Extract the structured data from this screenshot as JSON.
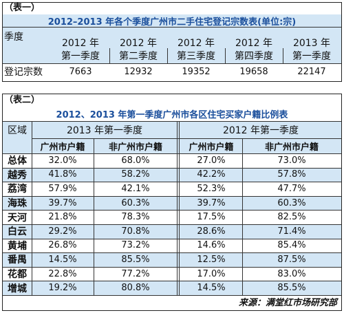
{
  "table1": {
    "label": "（表一）",
    "title": "2012–2013 年各个季度广州市二手住宅登记宗数表(单位:宗)",
    "row_header": "季度",
    "columns": [
      {
        "year": "2012 年",
        "quarter": "第一季度"
      },
      {
        "year": "2012 年",
        "quarter": "第二季度"
      },
      {
        "year": "2012 年",
        "quarter": "第三季度"
      },
      {
        "year": "2012 年",
        "quarter": "第四季度"
      },
      {
        "year": "2013 年",
        "quarter": "第一季度"
      }
    ],
    "row_label": "登记宗数",
    "values": [
      "7663",
      "12932",
      "19352",
      "19658",
      "22147"
    ]
  },
  "table2": {
    "label": "（表二）",
    "title": "2012、2013 年第一季度广州市各区住宅买家户籍比例表",
    "region_header": "区域",
    "groups": [
      "2013 年第一季度",
      "2012 年第一季度"
    ],
    "subheaders": [
      "广州市户籍",
      "非广州市户籍",
      "广州市户籍",
      "非广州市户籍"
    ],
    "rows": [
      [
        "总体",
        "32.0%",
        "68.0%",
        "27.0%",
        "73.0%"
      ],
      [
        "越秀",
        "41.8%",
        "58.2%",
        "42.2%",
        "57.8%"
      ],
      [
        "荔湾",
        "57.9%",
        "42.1%",
        "52.3%",
        "47.7%"
      ],
      [
        "海珠",
        "39.7%",
        "60.3%",
        "39.7%",
        "60.3%"
      ],
      [
        "天河",
        "21.8%",
        "78.3%",
        "17.5%",
        "82.5%"
      ],
      [
        "白云",
        "29.2%",
        "70.8%",
        "28.6%",
        "71.4%"
      ],
      [
        "黄埔",
        "26.8%",
        "73.2%",
        "14.6%",
        "85.4%"
      ],
      [
        "番禺",
        "14.5%",
        "85.5%",
        "12.5%",
        "87.5%"
      ],
      [
        "花都",
        "22.8%",
        "77.2%",
        "17.0%",
        "83.0%"
      ],
      [
        "增城",
        "19.2%",
        "80.8%",
        "14.5%",
        "85.5%"
      ]
    ],
    "source": "来源：满堂红市场研究部"
  }
}
